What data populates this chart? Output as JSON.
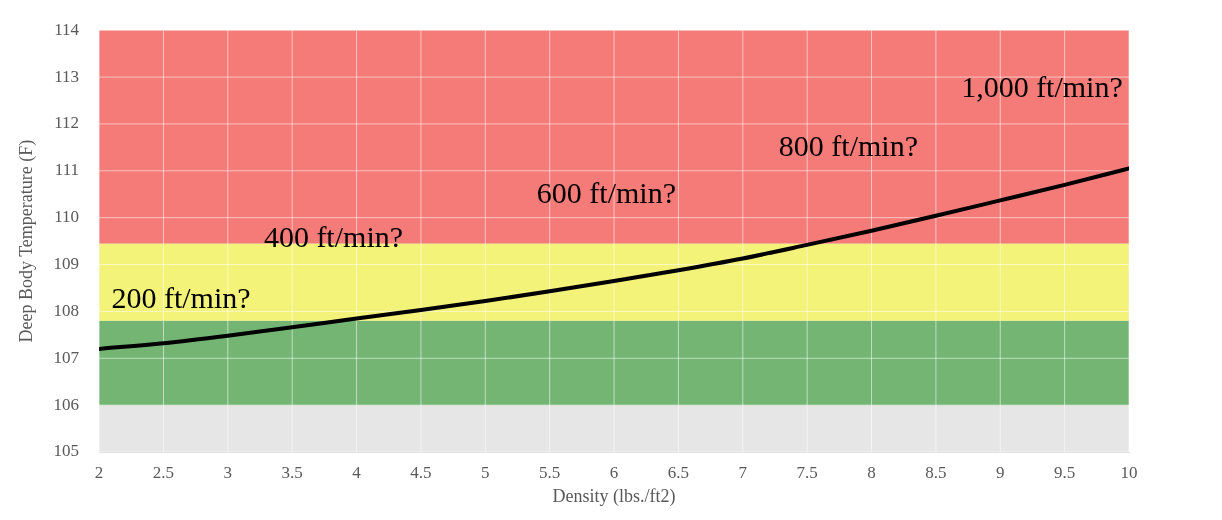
{
  "chart_data": {
    "type": "line",
    "xlabel": "Density (lbs./ft2)",
    "ylabel": "Deep Body Temperature (F)",
    "x": [
      2,
      2.5,
      3,
      3.5,
      4,
      4.5,
      5,
      5.5,
      6,
      6.5,
      7,
      7.5,
      8,
      8.5,
      9,
      9.5,
      10
    ],
    "series": [
      {
        "color": "#000000",
        "values": [
          107.2,
          107.32,
          107.48,
          107.66,
          107.85,
          108.03,
          108.22,
          108.43,
          108.65,
          108.88,
          109.13,
          109.42,
          109.72,
          110.04,
          110.37,
          110.7,
          111.05
        ]
      }
    ],
    "xlim": [
      2,
      10
    ],
    "xticks": [
      2,
      2.5,
      3,
      3.5,
      4,
      4.5,
      5,
      5.5,
      6,
      6.5,
      7,
      7.5,
      8,
      8.5,
      9,
      9.5,
      10
    ],
    "ylim": [
      105,
      114
    ],
    "yticks": [
      105,
      106,
      107,
      108,
      109,
      110,
      111,
      112,
      113,
      114
    ],
    "grid": true,
    "legend": false,
    "marker": "none",
    "line_style": "solid",
    "bands": [
      {
        "axis": "y",
        "from": 106,
        "to": 107.8,
        "color": "#74b574"
      },
      {
        "axis": "y",
        "from": 107.8,
        "to": 109.45,
        "color": "#f3f279"
      },
      {
        "axis": "y",
        "from": 109.45,
        "to": 114,
        "color": "#f47b78"
      }
    ],
    "annotations": [
      "200 ft/min?",
      "400 ft/min?",
      "600 ft/min?",
      "800 ft/min?",
      "1,000 ft/min?"
    ]
  }
}
